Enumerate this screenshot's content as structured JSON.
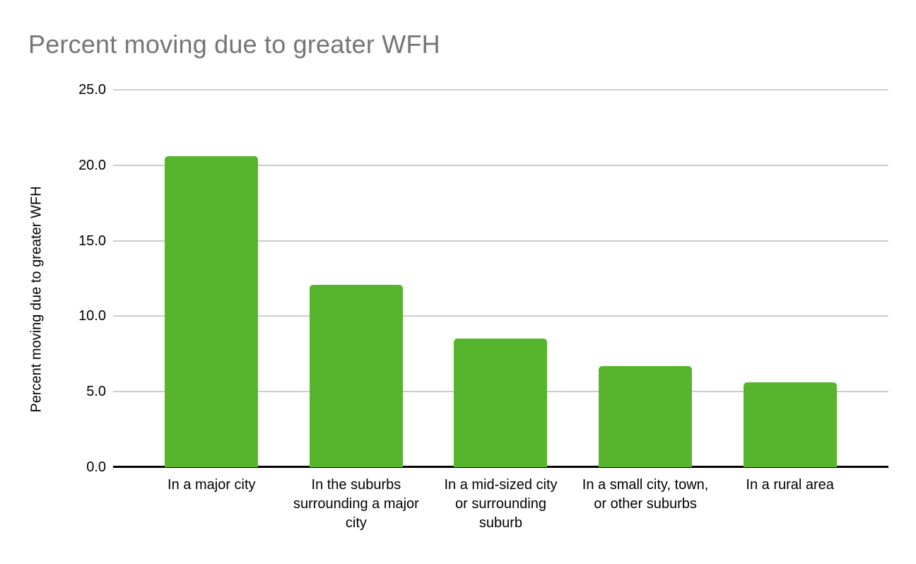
{
  "title": "Percent moving due to greater WFH",
  "colors": {
    "background": "#ffffff",
    "bar": "#57B52D",
    "gridline": "#cccccc",
    "axis_line": "#000000",
    "title_text": "#757575",
    "label_text": "#000000"
  },
  "chart_data": {
    "type": "bar",
    "title": "Percent moving due to greater WFH",
    "xlabel": "",
    "ylabel": "Percent moving due to greater WFH",
    "categories": [
      "In a major city",
      "In the suburbs surrounding a major city",
      "In a mid-sized city or surrounding suburb",
      "In a small city, town, or other suburbs",
      "In a rural area"
    ],
    "values": [
      20.6,
      12.1,
      8.5,
      6.7,
      5.6
    ],
    "ylim": [
      0,
      25
    ],
    "yticks": [
      0,
      5,
      10,
      15,
      20,
      25
    ],
    "ytick_labels": [
      "0.0",
      "5.0",
      "10.0",
      "15.0",
      "20.0",
      "25.0"
    ],
    "grid": true,
    "legend": false,
    "bar_color": "#57B52D"
  }
}
